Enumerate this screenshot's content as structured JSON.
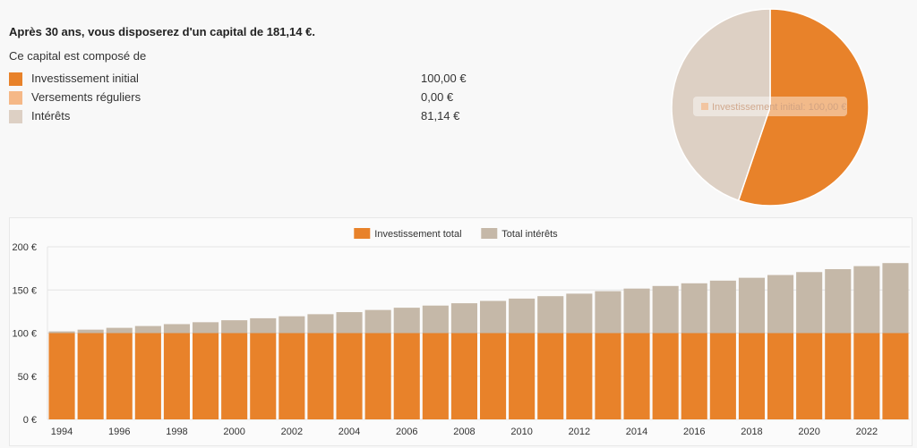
{
  "summary": {
    "headline": "Après 30 ans, vous disposerez d'un capital de 181,14 €.",
    "composition_label": "Ce capital est composé de",
    "items": [
      {
        "label": "Investissement initial",
        "value": "100,00 €",
        "color": "#e8822a"
      },
      {
        "label": "Versements réguliers",
        "value": "0,00 €",
        "color": "#f5b887"
      },
      {
        "label": "Intérêts",
        "value": "81,14 €",
        "color": "#ddd0c4"
      }
    ]
  },
  "pie": {
    "tooltip": "Investissement initial: 100,00 €",
    "tooltip_swatch": "#f5b887",
    "slices": [
      {
        "label": "Investissement initial",
        "value": 100.0,
        "color": "#e8822a"
      },
      {
        "label": "Versements réguliers",
        "value": 0.0,
        "color": "#f5b887"
      },
      {
        "label": "Intérêts",
        "value": 81.14,
        "color": "#ddd0c4"
      }
    ]
  },
  "chart_data": {
    "type": "bar",
    "stacked": true,
    "legend": [
      {
        "name": "Investissement total",
        "color": "#e8822a"
      },
      {
        "name": "Total intérêts",
        "color": "#c5b8a8"
      }
    ],
    "categories": [
      "1994",
      "1995",
      "1996",
      "1997",
      "1998",
      "1999",
      "2000",
      "2001",
      "2002",
      "2003",
      "2004",
      "2005",
      "2006",
      "2007",
      "2008",
      "2009",
      "2010",
      "2011",
      "2012",
      "2013",
      "2014",
      "2015",
      "2016",
      "2017",
      "2018",
      "2019",
      "2020",
      "2021",
      "2022",
      "2023"
    ],
    "x_tick_labels": [
      "1994",
      "",
      "1996",
      "",
      "1998",
      "",
      "2000",
      "",
      "2002",
      "",
      "2004",
      "",
      "2006",
      "",
      "2008",
      "",
      "2010",
      "",
      "2012",
      "",
      "2014",
      "",
      "2016",
      "",
      "2018",
      "",
      "2020",
      "",
      "2022",
      ""
    ],
    "series": [
      {
        "name": "Investissement total",
        "color": "#e8822a",
        "values": [
          100,
          100,
          100,
          100,
          100,
          100,
          100,
          100,
          100,
          100,
          100,
          100,
          100,
          100,
          100,
          100,
          100,
          100,
          100,
          100,
          100,
          100,
          100,
          100,
          100,
          100,
          100,
          100,
          100,
          100
        ]
      },
      {
        "name": "Total intérêts",
        "color": "#c5b8a8",
        "values": [
          2.0,
          4.0,
          6.1,
          8.2,
          10.4,
          12.6,
          14.9,
          17.2,
          19.5,
          21.9,
          24.3,
          26.8,
          29.4,
          31.9,
          34.6,
          37.3,
          40.0,
          42.8,
          45.7,
          48.6,
          51.6,
          54.6,
          57.7,
          60.8,
          64.1,
          67.3,
          70.7,
          74.1,
          77.6,
          81.14
        ]
      }
    ],
    "y_ticks": [
      {
        "value": 0,
        "label": "0 €"
      },
      {
        "value": 50,
        "label": "50 €"
      },
      {
        "value": 100,
        "label": "100 €"
      },
      {
        "value": 150,
        "label": "150 €"
      },
      {
        "value": 200,
        "label": "200 €"
      }
    ],
    "ylim": [
      0,
      200
    ],
    "grid": true,
    "legend_position": "top-center"
  }
}
